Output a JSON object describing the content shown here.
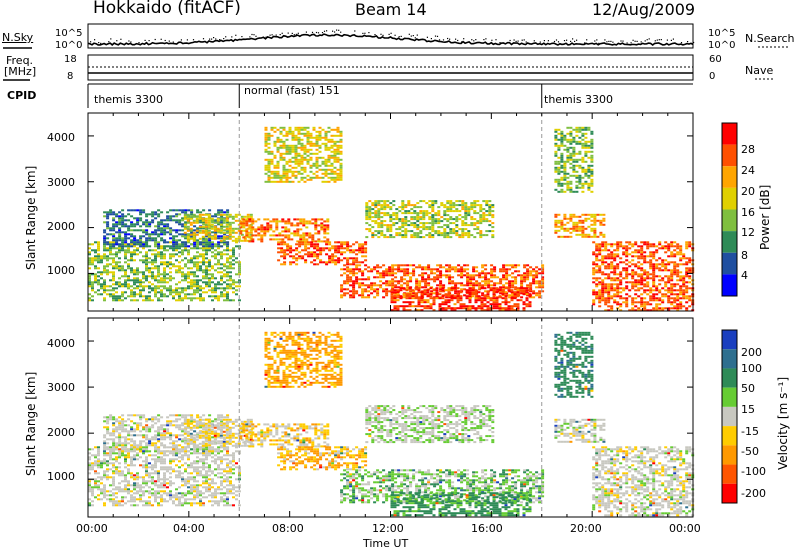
{
  "header": {
    "radar": "Hokkaido (fitACF)",
    "beam": "Beam 14",
    "date": "12/Aug/2009"
  },
  "top_panels": {
    "nsky_label": "N.Sky",
    "nsearch_label": "N.Search",
    "noise_ticks_left": [
      "10^5",
      "10^0"
    ],
    "noise_ticks_right": [
      "10^5",
      "10^0"
    ],
    "freq_label_1": "Freq.",
    "freq_label_2": "[MHz]",
    "freq_ticks": [
      "18",
      "8"
    ],
    "nave_label": "Nave",
    "nave_ticks": [
      "60",
      "0"
    ],
    "cpid_label": "CPID",
    "cpid_segments": [
      {
        "name": "themis 3300",
        "start_hour": 0.0,
        "end_hour": 6.0
      },
      {
        "name": "normal (fast) 151",
        "start_hour": 6.0,
        "end_hour": 18.0
      },
      {
        "name": "themis 3300",
        "start_hour": 18.0,
        "end_hour": 24.0
      }
    ]
  },
  "power_panel": {
    "ylabel": "Slant Range [km]",
    "yticks": [
      "1000",
      "2000",
      "3000",
      "4000"
    ],
    "colorbar_label": "Power [dB]",
    "colorbar_ticks": [
      "4",
      "8",
      "12",
      "16",
      "20",
      "24",
      "28"
    ],
    "colors": [
      "#0000ff",
      "#1f4fa0",
      "#2e8b57",
      "#7fbf3f",
      "#e0d000",
      "#ffa500",
      "#ff5000",
      "#ff0000"
    ]
  },
  "velocity_panel": {
    "ylabel": "Slant Range [km]",
    "yticks": [
      "1000",
      "2000",
      "3000",
      "4000"
    ],
    "colorbar_label": "Velocity [m s⁻¹]",
    "colorbar_ticks": [
      "200",
      "100",
      "50",
      "15",
      "-15",
      "-50",
      "-100",
      "-200"
    ],
    "colors": [
      "#1a3fbf",
      "#2e6f8f",
      "#2e8b57",
      "#66cc33",
      "#c8c8c0",
      "#ffcc00",
      "#ff9900",
      "#ff5500",
      "#ff0000"
    ]
  },
  "xaxis": {
    "label": "Time UT",
    "ticks": [
      "00:00",
      "04:00",
      "08:00",
      "12:00",
      "16:00",
      "20:00",
      "00:00"
    ]
  },
  "chart_data": {
    "type": "heatmap",
    "title": "Hokkaido (fitACF) Beam 14 12/Aug/2009",
    "xlabel": "Time UT",
    "ylabel": "Slant Range [km]",
    "x_range_hours": [
      0,
      24
    ],
    "y_range_km": [
      180,
      4500
    ],
    "power_db_range": [
      0,
      32
    ],
    "velocity_range": [
      -250,
      250
    ],
    "echo_regions": [
      {
        "t0": 0.0,
        "t1": 6.0,
        "r0": 400,
        "r1": 1700,
        "power_db": 14,
        "velocity": 0
      },
      {
        "t0": 0.6,
        "t1": 5.5,
        "r0": 1600,
        "r1": 2400,
        "power_db": 8,
        "velocity": 0
      },
      {
        "t0": 3.8,
        "t1": 6.5,
        "r0": 1700,
        "r1": 2300,
        "power_db": 18,
        "velocity": -10
      },
      {
        "t0": 6.0,
        "t1": 9.5,
        "r0": 1700,
        "r1": 2200,
        "power_db": 24,
        "velocity": -20
      },
      {
        "t0": 7.5,
        "t1": 11.0,
        "r0": 1200,
        "r1": 1700,
        "power_db": 26,
        "velocity": -30
      },
      {
        "t0": 7.0,
        "t1": 10.0,
        "r0": 3000,
        "r1": 4200,
        "power_db": 18,
        "velocity": -40
      },
      {
        "t0": 10.0,
        "t1": 18.0,
        "r0": 500,
        "r1": 1200,
        "power_db": 26,
        "velocity": 20
      },
      {
        "t0": 12.0,
        "t1": 17.5,
        "r0": 200,
        "r1": 700,
        "power_db": 28,
        "velocity": 40
      },
      {
        "t0": 11.0,
        "t1": 16.0,
        "r0": 1800,
        "r1": 2600,
        "power_db": 16,
        "velocity": 10
      },
      {
        "t0": 18.5,
        "t1": 20.0,
        "r0": 2800,
        "r1": 4200,
        "power_db": 14,
        "velocity": 60
      },
      {
        "t0": 18.5,
        "t1": 20.5,
        "r0": 1800,
        "r1": 2300,
        "power_db": 22,
        "velocity": 0
      },
      {
        "t0": 20.0,
        "t1": 24.0,
        "r0": 200,
        "r1": 1700,
        "power_db": 26,
        "velocity": 0
      }
    ]
  }
}
